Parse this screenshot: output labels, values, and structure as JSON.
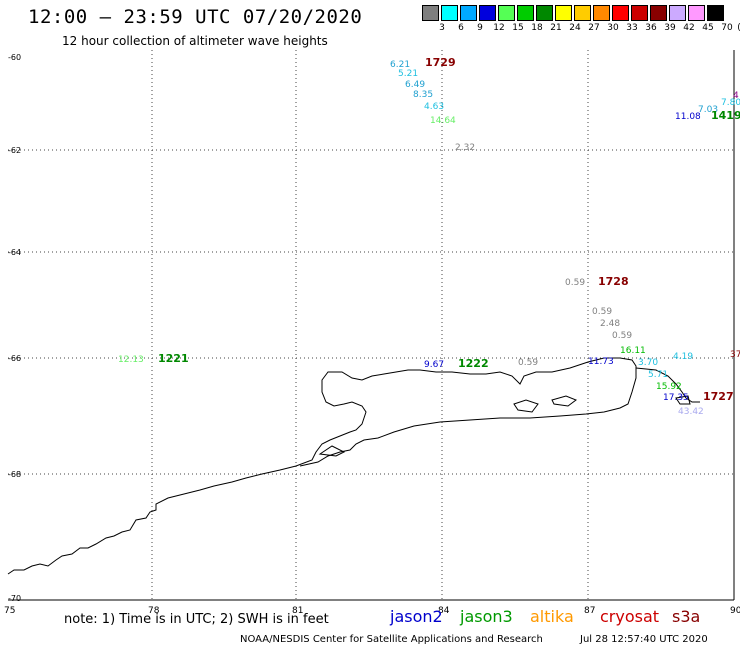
{
  "header": {
    "title": "12:00 – 23:59 UTC 07/20/2020",
    "subtitle": "12 hour collection of altimeter wave heights",
    "scale_unit": "(ft)"
  },
  "color_scale": [
    {
      "label": "3",
      "color": "#7f7f7f"
    },
    {
      "label": "6",
      "color": "#00ffff"
    },
    {
      "label": "9",
      "color": "#00aaff"
    },
    {
      "label": "12",
      "color": "#0000dd"
    },
    {
      "label": "15",
      "color": "#55ff55"
    },
    {
      "label": "18",
      "color": "#00cc00"
    },
    {
      "label": "21",
      "color": "#008800"
    },
    {
      "label": "24",
      "color": "#ffff00"
    },
    {
      "label": "27",
      "color": "#ffcc00"
    },
    {
      "label": "30",
      "color": "#ff8800"
    },
    {
      "label": "33",
      "color": "#ff0000"
    },
    {
      "label": "36",
      "color": "#cc0000"
    },
    {
      "label": "39",
      "color": "#880000"
    },
    {
      "label": "42",
      "color": "#ccaaff"
    },
    {
      "label": "45",
      "color": "#ff99ff"
    },
    {
      "label": "70",
      "color": "#000000"
    }
  ],
  "axes": {
    "lat_labels": [
      "-60",
      "-62",
      "-64",
      "-66",
      "-68",
      "-70"
    ],
    "lon_labels": [
      "75",
      "78",
      "81",
      "84",
      "87",
      "90"
    ]
  },
  "observations": [
    {
      "text": "6.21",
      "color": "#1fa0d0"
    },
    {
      "text": "5.21",
      "color": "#1fc0e0"
    },
    {
      "text": "6.49",
      "color": "#1fa0d0"
    },
    {
      "text": "8.35",
      "color": "#1fa0d0"
    },
    {
      "text": "4.63",
      "color": "#1fc0e0"
    },
    {
      "text": "14.64",
      "color": "#66ee66"
    },
    {
      "text": "2.32",
      "color": "#808080"
    },
    {
      "text": "1729",
      "color": "#880000"
    },
    {
      "text": "7.03",
      "color": "#1fa0d0"
    },
    {
      "text": "7.80",
      "color": "#1fc0e0"
    },
    {
      "text": "4",
      "color": "#880088"
    },
    {
      "text": "11.08",
      "color": "#0000cc"
    },
    {
      "text": "1419",
      "color": "#008800"
    },
    {
      "text": "0.59",
      "color": "#808080"
    },
    {
      "text": "1728",
      "color": "#880000"
    },
    {
      "text": "0.59",
      "color": "#808080"
    },
    {
      "text": "2.48",
      "color": "#808080"
    },
    {
      "text": "0.59",
      "color": "#808080"
    },
    {
      "text": "16.11",
      "color": "#00bb00"
    },
    {
      "text": "4.19",
      "color": "#1fc0e0"
    },
    {
      "text": "37",
      "color": "#880000"
    },
    {
      "text": "12.13",
      "color": "#66ee66"
    },
    {
      "text": "1221",
      "color": "#008800"
    },
    {
      "text": "9.67",
      "color": "#0000cc"
    },
    {
      "text": "1222",
      "color": "#008800"
    },
    {
      "text": "0.59",
      "color": "#808080"
    },
    {
      "text": "11.73",
      "color": "#0000cc"
    },
    {
      "text": "3.70",
      "color": "#1fc0e0"
    },
    {
      "text": "5.71",
      "color": "#1fc0e0"
    },
    {
      "text": "15.92",
      "color": "#00bb00"
    },
    {
      "text": "17.35",
      "color": "#0000cc"
    },
    {
      "text": "1727",
      "color": "#880000"
    },
    {
      "text": "43.42",
      "color": "#aaaaee"
    }
  ],
  "footer": {
    "note": "note: 1) Time is in UTC; 2) SWH is in feet",
    "satellites": [
      {
        "name": "jason2",
        "color": "#0000cc"
      },
      {
        "name": "jason3",
        "color": "#009900"
      },
      {
        "name": "altika",
        "color": "#ff9900"
      },
      {
        "name": "cryosat",
        "color": "#cc0000"
      },
      {
        "name": "s3a",
        "color": "#880000"
      }
    ],
    "credit": "NOAA/NESDIS Center for Satellite Applications and Research",
    "timestamp": "Jul 28 12:57:40 UTC 2020"
  }
}
